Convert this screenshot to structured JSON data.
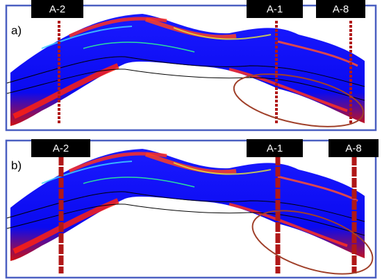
{
  "panels": [
    {
      "label": "a)",
      "wells": [
        "A-2",
        "A-1",
        "A-8"
      ]
    },
    {
      "label": "b)",
      "wells": [
        "A-2",
        "A-1",
        "A-8"
      ]
    }
  ]
}
